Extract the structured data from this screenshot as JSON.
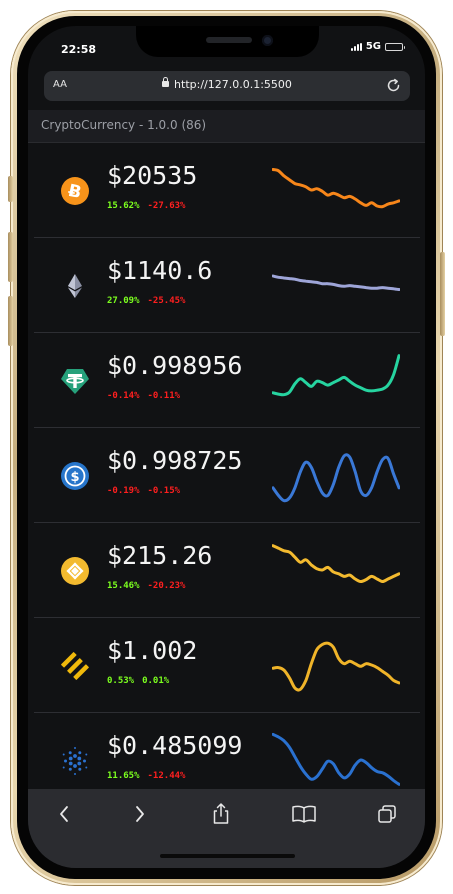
{
  "status": {
    "time": "22:58",
    "network": "5G"
  },
  "browser": {
    "reader_label": "AA",
    "url": "http://127.0.0.1:5500"
  },
  "app": {
    "title": "CryptoCurrency - 1.0.0 (86)"
  },
  "colors": {
    "positive": "#7cff1f",
    "negative": "#ff1f1f",
    "background": "#111214"
  },
  "coins": [
    {
      "icon": "bitcoin-icon",
      "price": "$20535",
      "change_1": "15.62%",
      "change_1_dir": "up",
      "change_2": "-27.63%",
      "change_2_dir": "down",
      "color": "#f7861a",
      "trend": [
        0.82,
        0.8,
        0.72,
        0.66,
        0.6,
        0.58,
        0.55,
        0.5,
        0.52,
        0.48,
        0.42,
        0.45,
        0.42,
        0.38,
        0.4,
        0.36,
        0.3,
        0.26,
        0.3,
        0.25,
        0.24,
        0.28,
        0.3,
        0.33
      ]
    },
    {
      "icon": "ethereum-icon",
      "price": "$1140.6",
      "change_1": "27.09%",
      "change_1_dir": "up",
      "change_2": "-25.45%",
      "change_2_dir": "down",
      "color": "#9ea5d8",
      "trend": [
        0.64,
        0.62,
        0.61,
        0.6,
        0.59,
        0.57,
        0.56,
        0.55,
        0.54,
        0.52,
        0.52,
        0.51,
        0.49,
        0.48,
        0.49,
        0.48,
        0.47,
        0.46,
        0.45,
        0.45,
        0.46,
        0.45,
        0.44,
        0.43
      ]
    },
    {
      "icon": "tether-icon",
      "price": "$0.998956",
      "change_1": "-0.14%",
      "change_1_dir": "down",
      "change_2": "-0.11%",
      "change_2_dir": "down",
      "color": "#26d4a0",
      "trend": [
        0.3,
        0.28,
        0.27,
        0.31,
        0.44,
        0.52,
        0.46,
        0.4,
        0.48,
        0.46,
        0.42,
        0.46,
        0.5,
        0.54,
        0.48,
        0.42,
        0.38,
        0.34,
        0.33,
        0.34,
        0.36,
        0.42,
        0.58,
        0.88
      ]
    },
    {
      "icon": "usdcoin-icon",
      "price": "$0.998725",
      "change_1": "-0.19%",
      "change_1_dir": "down",
      "change_2": "-0.15%",
      "change_2_dir": "down",
      "color": "#3a78d6",
      "trend": [
        0.3,
        0.18,
        0.1,
        0.14,
        0.3,
        0.55,
        0.7,
        0.62,
        0.4,
        0.22,
        0.18,
        0.35,
        0.62,
        0.8,
        0.78,
        0.55,
        0.25,
        0.18,
        0.3,
        0.55,
        0.74,
        0.76,
        0.52,
        0.3
      ]
    },
    {
      "icon": "binancecoin-icon",
      "price": "$215.26",
      "change_1": "15.46%",
      "change_1_dir": "up",
      "change_2": "-20.23%",
      "change_2_dir": "down",
      "color": "#f3ba2f",
      "trend": [
        0.88,
        0.84,
        0.8,
        0.78,
        0.7,
        0.62,
        0.66,
        0.58,
        0.52,
        0.5,
        0.54,
        0.47,
        0.44,
        0.4,
        0.42,
        0.36,
        0.32,
        0.35,
        0.4,
        0.36,
        0.32,
        0.36,
        0.4,
        0.44
      ]
    },
    {
      "icon": "binanceusd-icon",
      "price": "$1.002",
      "change_1": "0.53%",
      "change_1_dir": "up",
      "change_2": "0.01%",
      "change_2_dir": "up",
      "color": "#f0b429",
      "trend": [
        0.45,
        0.46,
        0.42,
        0.3,
        0.14,
        0.12,
        0.26,
        0.52,
        0.74,
        0.82,
        0.84,
        0.78,
        0.6,
        0.52,
        0.56,
        0.52,
        0.48,
        0.52,
        0.5,
        0.46,
        0.4,
        0.34,
        0.26,
        0.22
      ]
    },
    {
      "icon": "cardano-icon",
      "price": "$0.485099",
      "change_1": "11.65%",
      "change_1_dir": "up",
      "change_2": "-12.44%",
      "change_2_dir": "down",
      "color": "#2a71d0",
      "trend": [
        0.9,
        0.86,
        0.8,
        0.7,
        0.55,
        0.4,
        0.28,
        0.2,
        0.24,
        0.36,
        0.48,
        0.44,
        0.3,
        0.22,
        0.28,
        0.42,
        0.5,
        0.46,
        0.38,
        0.32,
        0.3,
        0.25,
        0.18,
        0.12
      ]
    }
  ]
}
